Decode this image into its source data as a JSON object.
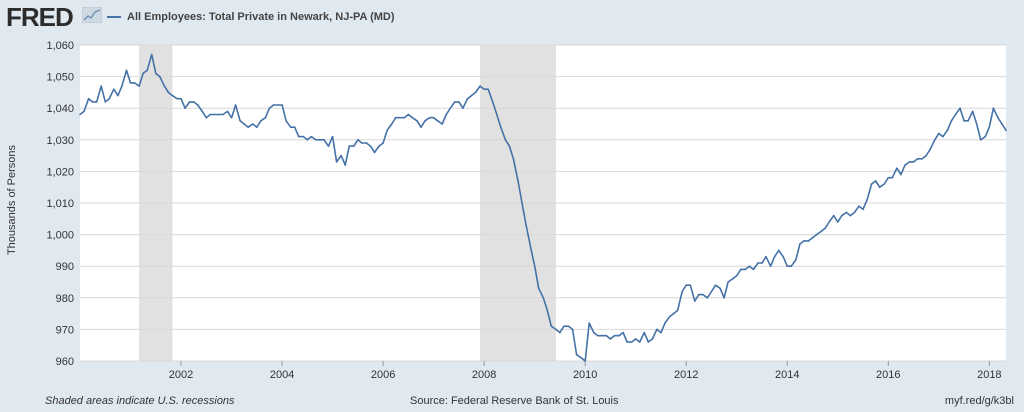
{
  "header": {
    "logo_text": "FRED",
    "logo_icon": "line-chart-icon"
  },
  "colors": {
    "series": "#4572a7",
    "plot_background": "#ffffff",
    "page_background": "#e1e9f0",
    "recession_shade": "#e1e1e1",
    "grid": "#d8d8d8"
  },
  "footer": {
    "note": "Shaded areas indicate U.S. recessions",
    "source": "Source: Federal Reserve Bank of St. Louis",
    "link": "myf.red/g/k3bl"
  },
  "chart_data": {
    "type": "line",
    "title": "",
    "ylabel": "Thousands of Persons",
    "xlabel": "",
    "ylim": [
      960,
      1060
    ],
    "xlim": [
      2000.0,
      2018.33
    ],
    "grid": true,
    "legend_placement": "top-left",
    "yticks": [
      960,
      970,
      980,
      990,
      1000,
      1010,
      1020,
      1030,
      1040,
      1050,
      1060
    ],
    "ytick_labels": [
      "960",
      "970",
      "980",
      "990",
      "1,000",
      "1,010",
      "1,020",
      "1,030",
      "1,040",
      "1,050",
      "1,060"
    ],
    "xticks": [
      2002,
      2004,
      2006,
      2008,
      2010,
      2012,
      2014,
      2016,
      2018
    ],
    "xtick_labels": [
      "2002",
      "2004",
      "2006",
      "2008",
      "2010",
      "2012",
      "2014",
      "2016",
      "2018"
    ],
    "recessions": [
      [
        2001.17,
        2001.83
      ],
      [
        2007.92,
        2009.42
      ]
    ],
    "series": [
      {
        "name": "All Employees: Total Private in Newark, NJ-PA (MD)",
        "x": [
          2000.0,
          2000.08,
          2000.17,
          2000.25,
          2000.33,
          2000.42,
          2000.5,
          2000.58,
          2000.67,
          2000.75,
          2000.83,
          2000.92,
          2001.0,
          2001.08,
          2001.17,
          2001.25,
          2001.33,
          2001.42,
          2001.5,
          2001.58,
          2001.67,
          2001.75,
          2001.83,
          2001.92,
          2002.0,
          2002.08,
          2002.17,
          2002.25,
          2002.33,
          2002.42,
          2002.5,
          2002.58,
          2002.67,
          2002.75,
          2002.83,
          2002.92,
          2003.0,
          2003.08,
          2003.17,
          2003.25,
          2003.33,
          2003.42,
          2003.5,
          2003.58,
          2003.67,
          2003.75,
          2003.83,
          2003.92,
          2004.0,
          2004.08,
          2004.17,
          2004.25,
          2004.33,
          2004.42,
          2004.5,
          2004.58,
          2004.67,
          2004.75,
          2004.83,
          2004.92,
          2005.0,
          2005.08,
          2005.17,
          2005.25,
          2005.33,
          2005.42,
          2005.5,
          2005.58,
          2005.67,
          2005.75,
          2005.83,
          2005.92,
          2006.0,
          2006.08,
          2006.17,
          2006.25,
          2006.33,
          2006.42,
          2006.5,
          2006.58,
          2006.67,
          2006.75,
          2006.83,
          2006.92,
          2007.0,
          2007.08,
          2007.17,
          2007.25,
          2007.33,
          2007.42,
          2007.5,
          2007.58,
          2007.67,
          2007.75,
          2007.83,
          2007.92,
          2008.0,
          2008.08,
          2008.17,
          2008.25,
          2008.33,
          2008.42,
          2008.5,
          2008.58,
          2008.67,
          2008.75,
          2008.83,
          2008.92,
          2009.0,
          2009.08,
          2009.17,
          2009.25,
          2009.33,
          2009.42,
          2009.5,
          2009.58,
          2009.67,
          2009.75,
          2009.83,
          2009.92,
          2010.0,
          2010.08,
          2010.17,
          2010.25,
          2010.33,
          2010.42,
          2010.5,
          2010.58,
          2010.67,
          2010.75,
          2010.83,
          2010.92,
          2011.0,
          2011.08,
          2011.17,
          2011.25,
          2011.33,
          2011.42,
          2011.5,
          2011.58,
          2011.67,
          2011.75,
          2011.83,
          2011.92,
          2012.0,
          2012.08,
          2012.17,
          2012.25,
          2012.33,
          2012.42,
          2012.5,
          2012.58,
          2012.67,
          2012.75,
          2012.83,
          2012.92,
          2013.0,
          2013.08,
          2013.17,
          2013.25,
          2013.33,
          2013.42,
          2013.5,
          2013.58,
          2013.67,
          2013.75,
          2013.83,
          2013.92,
          2014.0,
          2014.08,
          2014.17,
          2014.25,
          2014.33,
          2014.42,
          2014.5,
          2014.58,
          2014.67,
          2014.75,
          2014.83,
          2014.92,
          2015.0,
          2015.08,
          2015.17,
          2015.25,
          2015.33,
          2015.42,
          2015.5,
          2015.58,
          2015.67,
          2015.75,
          2015.83,
          2015.92,
          2016.0,
          2016.08,
          2016.17,
          2016.25,
          2016.33,
          2016.42,
          2016.5,
          2016.58,
          2016.67,
          2016.75,
          2016.83,
          2016.92,
          2017.0,
          2017.08,
          2017.17,
          2017.25,
          2017.33,
          2017.42,
          2017.5,
          2017.58,
          2017.67,
          2017.75,
          2017.83,
          2017.92,
          2018.0,
          2018.08,
          2018.17,
          2018.25,
          2018.33
        ],
        "values": [
          1038,
          1039,
          1043,
          1042,
          1042,
          1047,
          1042,
          1043,
          1046,
          1044,
          1047,
          1052,
          1048,
          1048,
          1047,
          1051,
          1052,
          1057,
          1051,
          1050,
          1047,
          1045,
          1044,
          1043,
          1043,
          1040,
          1042,
          1042,
          1041,
          1039,
          1037,
          1038,
          1038,
          1038,
          1038,
          1039,
          1037,
          1041,
          1036,
          1035,
          1034,
          1035,
          1034,
          1036,
          1037,
          1040,
          1041,
          1041,
          1041,
          1036,
          1034,
          1034,
          1031,
          1031,
          1030,
          1031,
          1030,
          1030,
          1030,
          1028,
          1031,
          1023,
          1025,
          1022,
          1028,
          1028,
          1030,
          1029,
          1029,
          1028,
          1026,
          1028,
          1029,
          1033,
          1035,
          1037,
          1037,
          1037,
          1038,
          1037,
          1036,
          1034,
          1036,
          1037,
          1037,
          1036,
          1035,
          1038,
          1040,
          1042,
          1042,
          1040,
          1043,
          1044,
          1045,
          1047,
          1046,
          1046,
          1042,
          1038,
          1034,
          1030,
          1028,
          1024,
          1017,
          1010,
          1003,
          996,
          990,
          983,
          980,
          976,
          971,
          970,
          969,
          971,
          971,
          970,
          962,
          961,
          960,
          972,
          969,
          968,
          968,
          968,
          967,
          968,
          968,
          969,
          966,
          966,
          967,
          966,
          969,
          966,
          967,
          970,
          969,
          972,
          974,
          975,
          976,
          982,
          984,
          984,
          979,
          981,
          981,
          980,
          982,
          984,
          983,
          980,
          985,
          986,
          987,
          989,
          989,
          990,
          989,
          991,
          991,
          993,
          990,
          993,
          995,
          993,
          990,
          990,
          992,
          997,
          998,
          998,
          999,
          1000,
          1001,
          1002,
          1004,
          1006,
          1004,
          1006,
          1007,
          1006,
          1007,
          1009,
          1008,
          1011,
          1016,
          1017,
          1015,
          1016,
          1018,
          1018,
          1021,
          1019,
          1022,
          1023,
          1023,
          1024,
          1024,
          1025,
          1027,
          1030,
          1032,
          1031,
          1033,
          1036,
          1038,
          1040,
          1036,
          1036,
          1039,
          1035,
          1030,
          1031,
          1034,
          1040,
          1037,
          1035,
          1033
        ]
      }
    ]
  }
}
